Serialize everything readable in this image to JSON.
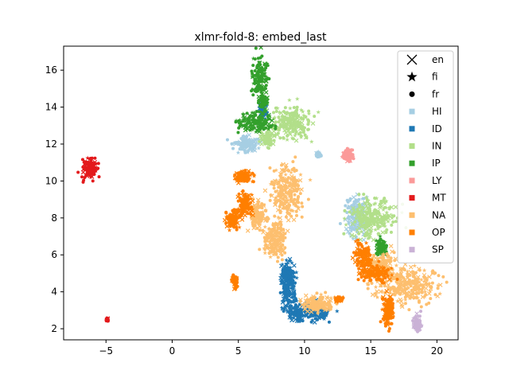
{
  "chart_data": {
    "type": "scatter",
    "title": "xlmr-fold-8: embed_last",
    "xlabel": "",
    "ylabel": "",
    "xlim": [
      -8.2,
      21.6
    ],
    "ylim": [
      1.4,
      17.3
    ],
    "xticks": [
      -5,
      0,
      5,
      10,
      15,
      20
    ],
    "xtick_labels": [
      "−5",
      "0",
      "5",
      "10",
      "15",
      "20"
    ],
    "yticks": [
      2,
      4,
      6,
      8,
      10,
      12,
      14,
      16
    ],
    "ytick_labels": [
      "2",
      "4",
      "6",
      "8",
      "10",
      "12",
      "14",
      "16"
    ],
    "grid": false,
    "legend_placement": "top-right",
    "marker_legend": [
      {
        "name": "en",
        "marker": "x"
      },
      {
        "name": "fi",
        "marker": "star"
      },
      {
        "name": "fr",
        "marker": "circle"
      }
    ],
    "series": [
      {
        "name": "HI",
        "color": "#a6cee3",
        "clusters": [
          [
            5.6,
            12.0,
            0.6,
            0.3
          ],
          [
            14.0,
            8.0,
            0.6,
            0.7
          ],
          [
            11.0,
            11.4,
            0.15,
            0.1
          ]
        ]
      },
      {
        "name": "ID",
        "color": "#1f78b4",
        "clusters": [
          [
            8.8,
            4.3,
            0.4,
            0.9
          ],
          [
            9.4,
            2.8,
            0.3,
            0.3
          ],
          [
            10.8,
            2.9,
            0.8,
            0.3
          ],
          [
            8.6,
            5.0,
            0.2,
            0.3
          ],
          [
            6.9,
            13.9,
            0.2,
            0.3
          ]
        ]
      },
      {
        "name": "IN",
        "color": "#b2df8a",
        "clusters": [
          [
            9.0,
            13.1,
            1.0,
            0.6
          ],
          [
            15.2,
            8.0,
            1.2,
            0.7
          ],
          [
            7.2,
            12.3,
            0.3,
            0.3
          ]
        ]
      },
      {
        "name": "IP",
        "color": "#33a02c",
        "clusters": [
          [
            6.6,
            15.6,
            0.35,
            0.8
          ],
          [
            6.3,
            13.2,
            0.9,
            0.35
          ],
          [
            15.8,
            6.4,
            0.3,
            0.3
          ],
          [
            6.9,
            14.3,
            0.2,
            0.2
          ]
        ]
      },
      {
        "name": "LY",
        "color": "#fb9a99",
        "clusters": [
          [
            13.3,
            11.4,
            0.25,
            0.25
          ]
        ]
      },
      {
        "name": "MT",
        "color": "#e31a1c",
        "clusters": [
          [
            -6.2,
            10.7,
            0.4,
            0.4
          ],
          [
            -4.9,
            2.5,
            0.05,
            0.05
          ]
        ]
      },
      {
        "name": "NA",
        "color": "#fdbf6f",
        "clusters": [
          [
            8.6,
            9.4,
            0.8,
            1.0
          ],
          [
            7.8,
            6.8,
            0.6,
            0.7
          ],
          [
            17.7,
            4.4,
            1.6,
            0.7
          ],
          [
            15.8,
            5.4,
            0.6,
            0.5
          ],
          [
            11.0,
            3.4,
            0.8,
            0.3
          ],
          [
            6.5,
            8.2,
            0.4,
            0.5
          ]
        ]
      },
      {
        "name": "OP",
        "color": "#ff7f00",
        "clusters": [
          [
            4.7,
            4.6,
            0.15,
            0.25
          ],
          [
            5.5,
            8.8,
            0.4,
            0.4
          ],
          [
            4.5,
            7.9,
            0.4,
            0.3
          ],
          [
            14.4,
            6.0,
            0.4,
            0.5
          ],
          [
            16.3,
            3.0,
            0.3,
            0.6
          ],
          [
            15.3,
            5.0,
            0.8,
            0.3
          ],
          [
            12.6,
            3.6,
            0.2,
            0.1
          ],
          [
            5.5,
            10.2,
            0.5,
            0.2
          ]
        ]
      },
      {
        "name": "SP",
        "color": "#cab2d6",
        "clusters": [
          [
            18.5,
            2.3,
            0.2,
            0.3
          ]
        ]
      }
    ]
  }
}
